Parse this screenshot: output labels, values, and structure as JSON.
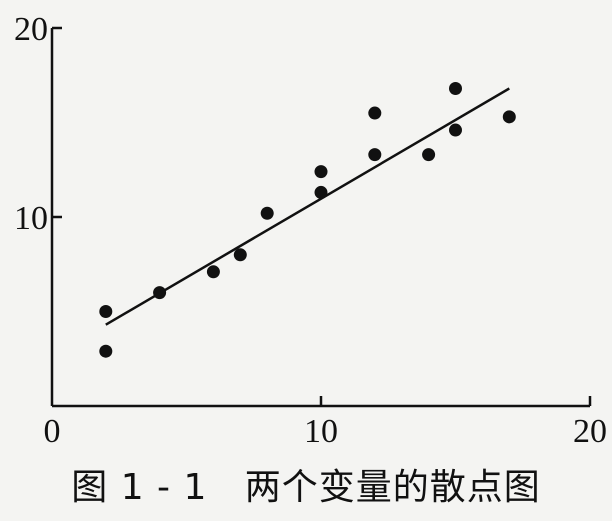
{
  "chart_data": {
    "type": "scatter",
    "title": "",
    "xlabel": "",
    "ylabel": "",
    "xlim": [
      0,
      20
    ],
    "ylim": [
      0,
      20
    ],
    "xticks": [
      0,
      10,
      20
    ],
    "yticks": [
      10,
      20
    ],
    "grid": false,
    "points": [
      {
        "x": 2,
        "y": 5.0
      },
      {
        "x": 2,
        "y": 2.9
      },
      {
        "x": 4,
        "y": 6.0
      },
      {
        "x": 6,
        "y": 7.1
      },
      {
        "x": 7,
        "y": 8.0
      },
      {
        "x": 8,
        "y": 10.2
      },
      {
        "x": 10,
        "y": 12.4
      },
      {
        "x": 10,
        "y": 11.3
      },
      {
        "x": 12,
        "y": 15.5
      },
      {
        "x": 12,
        "y": 13.3
      },
      {
        "x": 14,
        "y": 13.3
      },
      {
        "x": 15,
        "y": 14.6
      },
      {
        "x": 15,
        "y": 16.8
      },
      {
        "x": 17,
        "y": 15.3
      }
    ],
    "fit_line": {
      "x": [
        2,
        17
      ],
      "y": [
        4.3,
        16.8
      ]
    },
    "caption": "图 1 - 1   两个变量的散点图"
  }
}
